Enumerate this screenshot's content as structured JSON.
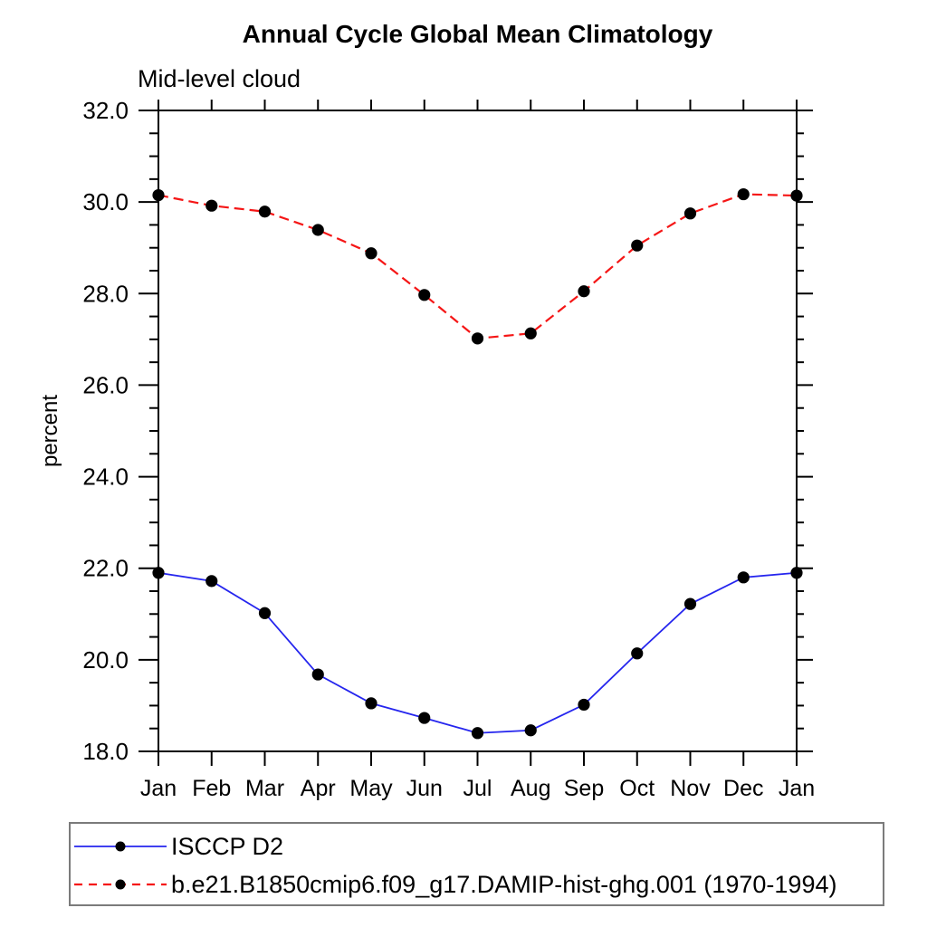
{
  "chart_data": {
    "type": "line",
    "title": "Annual Cycle Global Mean Climatology",
    "subtitle": "Mid-level cloud",
    "ylabel": "percent",
    "xlabel": "",
    "categories": [
      "Jan",
      "Feb",
      "Mar",
      "Apr",
      "May",
      "Jun",
      "Jul",
      "Aug",
      "Sep",
      "Oct",
      "Nov",
      "Dec",
      "Jan"
    ],
    "ylim": [
      18.0,
      32.0
    ],
    "ytick_major_interval": 2.0,
    "ytick_minor_interval": 0.5,
    "ytick_labels": [
      "18.0",
      "20.0",
      "22.0",
      "24.0",
      "26.0",
      "28.0",
      "30.0",
      "32.0"
    ],
    "grid": false,
    "legend_position": "bottom-left-box",
    "axis_color": "#000000",
    "background_color": "#ffffff",
    "series": [
      {
        "name": "ISCCP D2",
        "color": "#2525ee",
        "line_style": "solid",
        "line_width": 1.8,
        "marker": "filled-circle",
        "marker_color": "#000000",
        "values": [
          21.9,
          21.72,
          21.02,
          19.68,
          19.05,
          18.73,
          18.4,
          18.46,
          19.02,
          20.14,
          21.22,
          21.8,
          21.9
        ]
      },
      {
        "name": "b.e21.B1850cmip6.f09_g17.DAMIP-hist-ghg.001 (1970-1994)",
        "color": "#f51616",
        "line_style": "dashed",
        "line_width": 2.2,
        "marker": "filled-circle",
        "marker_color": "#000000",
        "values": [
          30.15,
          29.92,
          29.79,
          29.39,
          28.88,
          27.97,
          27.02,
          27.13,
          28.05,
          29.05,
          29.75,
          30.17,
          30.14
        ]
      }
    ]
  }
}
